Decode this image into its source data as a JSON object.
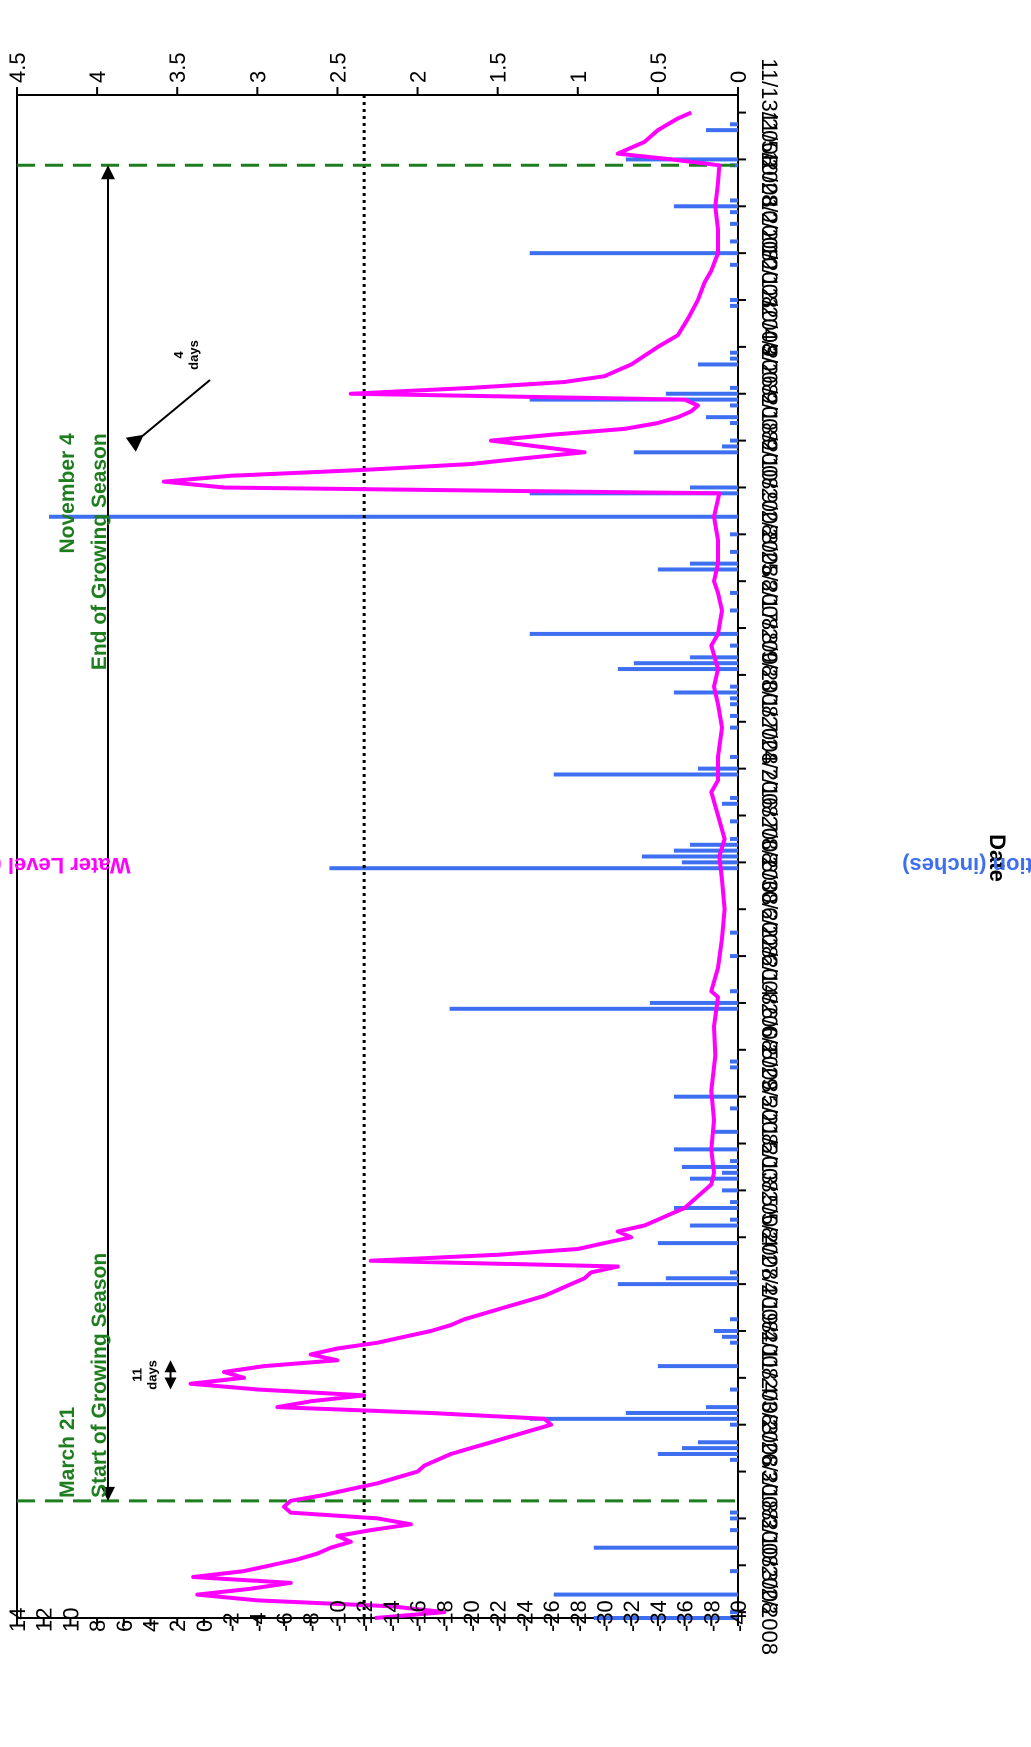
{
  "colors": {
    "water_level": "#ff00ff",
    "precipitation": "#3d6ff0",
    "growing_season": "#1e7d1e",
    "threshold": "#000000",
    "axis": "#000000"
  },
  "chart_data": {
    "type": "bar+line",
    "orientation": "rotated 90 degrees clockwise",
    "xlabel": "Date",
    "ylabel_left": "Water Level (inches)",
    "ylabel_right": "Precipitation (inches)",
    "y_left_ticks": [
      "14",
      "12",
      "10",
      "8",
      "6",
      "4",
      "2",
      "0",
      "-2",
      "-4",
      "-6",
      "-8",
      "-10",
      "-12",
      "-14",
      "-16",
      "-18",
      "-20",
      "-22",
      "-24",
      "-26",
      "-28",
      "-30",
      "-32",
      "-34",
      "-36",
      "-38",
      "-40"
    ],
    "y_left_range": [
      -40,
      14
    ],
    "y_right_ticks": [
      "4.5",
      "4",
      "3.5",
      "3",
      "2.5",
      "2",
      "1.5",
      "1",
      "0.5",
      "0"
    ],
    "y_right_range": [
      0,
      4.5
    ],
    "x_range": [
      "2008-03-01",
      "2008-11-16"
    ],
    "x_ticks": [
      "3/2/2008",
      "3/10/2008",
      "3/18/2008",
      "3/26/2008",
      "4/3/2008",
      "4/11/2008",
      "4/19/2008",
      "4/27/2008",
      "5/5/2008",
      "5/13/2008",
      "5/21/2008",
      "5/29/2008",
      "6/6/2008",
      "6/14/2008",
      "6/22/2008",
      "6/30/2008",
      "7/8/2008",
      "7/16/2008",
      "7/24/2008",
      "8/1/2008",
      "8/9/2008",
      "8/17/2008",
      "8/25/2008",
      "9/2/2008",
      "9/10/2008",
      "9/18/2008",
      "9/26/2008",
      "10/4/2008",
      "10/12/2008",
      "10/20/2008",
      "10/28/2008",
      "11/5/2008",
      "11/13/2008"
    ],
    "threshold_line": {
      "value": -12
    },
    "growing_season": [
      {
        "date": "2008-03-21",
        "label1": "March 21",
        "label2": "Start of Growing Season"
      },
      {
        "date": "2008-11-04",
        "label1": "November 4",
        "label2": "End of Growing Season"
      }
    ],
    "annotations": [
      {
        "label1": "11",
        "label2": "days",
        "from": "2008-04-09",
        "to": "2008-04-14",
        "level": 2.5
      },
      {
        "label1": "4",
        "label2": "days",
        "date": "2008-09-19",
        "level": 4.5
      }
    ],
    "series": [
      {
        "name": "Water Level",
        "axis": "left",
        "points": [
          [
            "2008-03-01",
            -12.8
          ],
          [
            "2008-03-02",
            -18
          ],
          [
            "2008-03-03",
            -14
          ],
          [
            "2008-03-04",
            -4
          ],
          [
            "2008-03-05",
            0.5
          ],
          [
            "2008-03-06",
            -3.5
          ],
          [
            "2008-03-07",
            -6.5
          ],
          [
            "2008-03-08",
            0.8
          ],
          [
            "2008-03-09",
            -3
          ],
          [
            "2008-03-10",
            -5
          ],
          [
            "2008-03-11",
            -7
          ],
          [
            "2008-03-12",
            -8.5
          ],
          [
            "2008-03-13",
            -9.5
          ],
          [
            "2008-03-14",
            -11
          ],
          [
            "2008-03-15",
            -10
          ],
          [
            "2008-03-16",
            -12.5
          ],
          [
            "2008-03-17",
            -15.5
          ],
          [
            "2008-03-18",
            -13
          ],
          [
            "2008-03-19",
            -6.5
          ],
          [
            "2008-03-20",
            -6
          ],
          [
            "2008-03-21",
            -6.5
          ],
          [
            "2008-03-22",
            -9
          ],
          [
            "2008-03-23",
            -11
          ],
          [
            "2008-03-24",
            -13
          ],
          [
            "2008-03-25",
            -14.5
          ],
          [
            "2008-03-26",
            -16
          ],
          [
            "2008-03-27",
            -16.5
          ],
          [
            "2008-03-28",
            -17.5
          ],
          [
            "2008-03-29",
            -18.5
          ],
          [
            "2008-03-30",
            -20
          ],
          [
            "2008-03-31",
            -21.5
          ],
          [
            "2008-04-01",
            -23
          ],
          [
            "2008-04-02",
            -24.5
          ],
          [
            "2008-04-03",
            -26
          ],
          [
            "2008-04-04",
            -25.5
          ],
          [
            "2008-04-05",
            -17
          ],
          [
            "2008-04-06",
            -5.5
          ],
          [
            "2008-04-07",
            -8
          ],
          [
            "2008-04-08",
            -12
          ],
          [
            "2008-04-09",
            -4
          ],
          [
            "2008-04-10",
            1
          ],
          [
            "2008-04-11",
            -3
          ],
          [
            "2008-04-12",
            -1.5
          ],
          [
            "2008-04-13",
            -4.5
          ],
          [
            "2008-04-14",
            -10
          ],
          [
            "2008-04-15",
            -8
          ],
          [
            "2008-04-16",
            -10
          ],
          [
            "2008-04-17",
            -13
          ],
          [
            "2008-04-18",
            -15
          ],
          [
            "2008-04-19",
            -17
          ],
          [
            "2008-04-20",
            -18.5
          ],
          [
            "2008-04-21",
            -19.5
          ],
          [
            "2008-04-22",
            -21
          ],
          [
            "2008-04-23",
            -22.5
          ],
          [
            "2008-04-24",
            -24
          ],
          [
            "2008-04-25",
            -25.5
          ],
          [
            "2008-04-26",
            -26.5
          ],
          [
            "2008-04-27",
            -27.5
          ],
          [
            "2008-04-28",
            -28.5
          ],
          [
            "2008-04-29",
            -29
          ],
          [
            "2008-04-30",
            -31
          ],
          [
            "2008-05-01",
            -12.5
          ],
          [
            "2008-05-02",
            -22
          ],
          [
            "2008-05-03",
            -28
          ],
          [
            "2008-05-04",
            -30
          ],
          [
            "2008-05-05",
            -32
          ],
          [
            "2008-05-06",
            -31
          ],
          [
            "2008-05-07",
            -33
          ],
          [
            "2008-05-08",
            -34
          ],
          [
            "2008-05-09",
            -35
          ],
          [
            "2008-05-10",
            -36
          ],
          [
            "2008-05-11",
            -36.5
          ],
          [
            "2008-05-12",
            -37
          ],
          [
            "2008-05-13",
            -37.5
          ],
          [
            "2008-05-14",
            -38
          ],
          [
            "2008-05-16",
            -38.2
          ],
          [
            "2008-05-20",
            -38
          ],
          [
            "2008-05-25",
            -38.2
          ],
          [
            "2008-05-30",
            -38
          ],
          [
            "2008-06-05",
            -38.3
          ],
          [
            "2008-06-10",
            -38.2
          ],
          [
            "2008-06-15",
            -38.5
          ],
          [
            "2008-06-16",
            -38
          ],
          [
            "2008-06-20",
            -38.5
          ],
          [
            "2008-06-25",
            -38.8
          ],
          [
            "2008-06-30",
            -39
          ],
          [
            "2008-07-05",
            -38.8
          ],
          [
            "2008-07-09",
            -38.6
          ],
          [
            "2008-07-12",
            -39
          ],
          [
            "2008-07-16",
            -38.5
          ],
          [
            "2008-07-20",
            -38
          ],
          [
            "2008-07-22",
            -38.5
          ],
          [
            "2008-07-26",
            -38.5
          ],
          [
            "2008-07-31",
            -38.8
          ],
          [
            "2008-08-04",
            -38.5
          ],
          [
            "2008-08-07",
            -38.2
          ],
          [
            "2008-08-10",
            -38.5
          ],
          [
            "2008-08-14",
            -38
          ],
          [
            "2008-08-16",
            -38.5
          ],
          [
            "2008-08-20",
            -38.8
          ],
          [
            "2008-08-23",
            -38.5
          ],
          [
            "2008-08-25",
            -38.2
          ],
          [
            "2008-08-28",
            -38.5
          ],
          [
            "2008-09-01",
            -38.5
          ],
          [
            "2008-09-05",
            -38.2
          ],
          [
            "2008-09-08",
            -38.5
          ],
          [
            "2008-09-09",
            -38.6
          ],
          [
            "2008-09-10",
            -1.5
          ],
          [
            "2008-09-11",
            3
          ],
          [
            "2008-09-12",
            -2
          ],
          [
            "2008-09-13",
            -12
          ],
          [
            "2008-09-14",
            -20
          ],
          [
            "2008-09-15",
            -24
          ],
          [
            "2008-09-16",
            -28.5
          ],
          [
            "2008-09-17",
            -25
          ],
          [
            "2008-09-18",
            -21.5
          ],
          [
            "2008-09-19",
            -26
          ],
          [
            "2008-09-20",
            -31.5
          ],
          [
            "2008-09-21",
            -34
          ],
          [
            "2008-09-22",
            -35.5
          ],
          [
            "2008-09-23",
            -36.5
          ],
          [
            "2008-09-24",
            -37
          ],
          [
            "2008-09-25",
            -36
          ],
          [
            "2008-09-26",
            -11
          ],
          [
            "2008-09-27",
            -20
          ],
          [
            "2008-09-28",
            -27
          ],
          [
            "2008-09-29",
            -30
          ],
          [
            "2008-09-30",
            -31
          ],
          [
            "2008-10-01",
            -32
          ],
          [
            "2008-10-04",
            -34
          ],
          [
            "2008-10-06",
            -35.5
          ],
          [
            "2008-10-09",
            -36.3
          ],
          [
            "2008-10-12",
            -37
          ],
          [
            "2008-10-15",
            -37.5
          ],
          [
            "2008-10-17",
            -38
          ],
          [
            "2008-10-20",
            -38.5
          ],
          [
            "2008-10-24",
            -38.5
          ],
          [
            "2008-10-28",
            -38.3
          ],
          [
            "2008-11-01",
            -38.5
          ],
          [
            "2008-11-04",
            -38.6
          ],
          [
            "2008-11-05",
            -35
          ],
          [
            "2008-11-06",
            -31
          ],
          [
            "2008-11-07",
            -32
          ],
          [
            "2008-11-08",
            -33
          ],
          [
            "2008-11-10",
            -34
          ],
          [
            "2008-11-12",
            -35.5
          ],
          [
            "2008-11-13",
            -36.5
          ]
        ]
      },
      {
        "name": "Precipitation",
        "axis": "right",
        "bars": [
          [
            "2008-03-01",
            0.9
          ],
          [
            "2008-03-02",
            0.05
          ],
          [
            "2008-03-05",
            1.15
          ],
          [
            "2008-03-09",
            0.05
          ],
          [
            "2008-03-13",
            0.9
          ],
          [
            "2008-03-16",
            0.05
          ],
          [
            "2008-03-18",
            0.05
          ],
          [
            "2008-03-19",
            0.05
          ],
          [
            "2008-03-28",
            0.05
          ],
          [
            "2008-03-29",
            0.5
          ],
          [
            "2008-03-30",
            0.35
          ],
          [
            "2008-03-31",
            0.25
          ],
          [
            "2008-04-03",
            0.05
          ],
          [
            "2008-04-04",
            1.3
          ],
          [
            "2008-04-05",
            0.7
          ],
          [
            "2008-04-06",
            0.2
          ],
          [
            "2008-04-09",
            0.05
          ],
          [
            "2008-04-13",
            0.5
          ],
          [
            "2008-04-17",
            0.05
          ],
          [
            "2008-04-18",
            0.1
          ],
          [
            "2008-04-19",
            0.15
          ],
          [
            "2008-04-21",
            0.05
          ],
          [
            "2008-04-27",
            0.75
          ],
          [
            "2008-04-28",
            0.45
          ],
          [
            "2008-04-29",
            0.05
          ],
          [
            "2008-05-04",
            0.5
          ],
          [
            "2008-05-07",
            0.3
          ],
          [
            "2008-05-08",
            0.05
          ],
          [
            "2008-05-10",
            0.4
          ],
          [
            "2008-05-11",
            0.05
          ],
          [
            "2008-05-13",
            0.1
          ],
          [
            "2008-05-15",
            0.3
          ],
          [
            "2008-05-16",
            0.1
          ],
          [
            "2008-05-17",
            0.35
          ],
          [
            "2008-05-18",
            0.05
          ],
          [
            "2008-05-20",
            0.4
          ],
          [
            "2008-05-23",
            0.15
          ],
          [
            "2008-05-27",
            0.05
          ],
          [
            "2008-05-29",
            0.4
          ],
          [
            "2008-06-03",
            0.05
          ],
          [
            "2008-06-04",
            0.05
          ],
          [
            "2008-06-13",
            1.8
          ],
          [
            "2008-06-14",
            0.55
          ],
          [
            "2008-06-16",
            0.05
          ],
          [
            "2008-06-22",
            0.05
          ],
          [
            "2008-06-26",
            0.05
          ],
          [
            "2008-07-07",
            2.55
          ],
          [
            "2008-07-08",
            0.35
          ],
          [
            "2008-07-09",
            0.6
          ],
          [
            "2008-07-10",
            0.4
          ],
          [
            "2008-07-11",
            0.3
          ],
          [
            "2008-07-12",
            0.05
          ],
          [
            "2008-07-15",
            0.05
          ],
          [
            "2008-07-18",
            0.1
          ],
          [
            "2008-07-19",
            0.05
          ],
          [
            "2008-07-23",
            1.15
          ],
          [
            "2008-07-24",
            0.25
          ],
          [
            "2008-07-26",
            0.05
          ],
          [
            "2008-07-31",
            0.05
          ],
          [
            "2008-08-02",
            0.05
          ],
          [
            "2008-08-04",
            0.05
          ],
          [
            "2008-08-05",
            0.05
          ],
          [
            "2008-08-06",
            0.4
          ],
          [
            "2008-08-07",
            0.05
          ],
          [
            "2008-08-10",
            0.75
          ],
          [
            "2008-08-11",
            0.65
          ],
          [
            "2008-08-12",
            0.3
          ],
          [
            "2008-08-14",
            0.05
          ],
          [
            "2008-08-16",
            1.3
          ],
          [
            "2008-08-20",
            0.05
          ],
          [
            "2008-08-23",
            0.05
          ],
          [
            "2008-08-27",
            0.5
          ],
          [
            "2008-08-28",
            0.3
          ],
          [
            "2008-08-30",
            0.05
          ],
          [
            "2008-09-02",
            0.05
          ],
          [
            "2008-09-05",
            4.3
          ],
          [
            "2008-09-09",
            1.3
          ],
          [
            "2008-09-10",
            0.3
          ],
          [
            "2008-09-16",
            0.65
          ],
          [
            "2008-09-17",
            0.1
          ],
          [
            "2008-09-18",
            0.05
          ],
          [
            "2008-09-21",
            0.05
          ],
          [
            "2008-09-22",
            0.2
          ],
          [
            "2008-09-24",
            0.05
          ],
          [
            "2008-09-25",
            1.3
          ],
          [
            "2008-09-26",
            0.45
          ],
          [
            "2008-09-27",
            0.05
          ],
          [
            "2008-10-01",
            0.25
          ],
          [
            "2008-10-02",
            0.05
          ],
          [
            "2008-10-03",
            0.05
          ],
          [
            "2008-10-11",
            0.05
          ],
          [
            "2008-10-12",
            0.05
          ],
          [
            "2008-10-18",
            0.05
          ],
          [
            "2008-10-20",
            1.3
          ],
          [
            "2008-10-22",
            0.05
          ],
          [
            "2008-10-25",
            0.05
          ],
          [
            "2008-10-27",
            0.05
          ],
          [
            "2008-10-28",
            0.4
          ],
          [
            "2008-10-29",
            0.05
          ],
          [
            "2008-11-04",
            0.05
          ],
          [
            "2008-11-05",
            0.7
          ],
          [
            "2008-11-10",
            0.2
          ],
          [
            "2008-11-11",
            0.05
          ]
        ]
      }
    ]
  }
}
